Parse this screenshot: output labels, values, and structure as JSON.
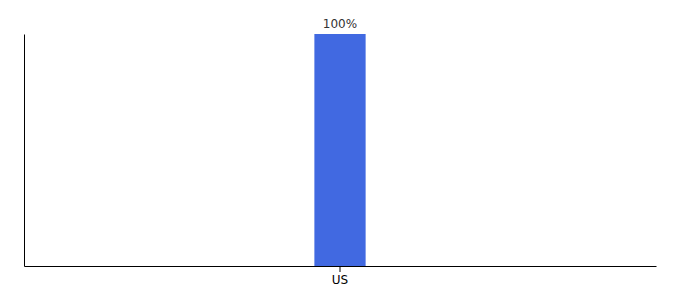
{
  "chart_data": {
    "type": "bar",
    "categories": [
      "US"
    ],
    "values": [
      100
    ],
    "value_labels": [
      "100%"
    ],
    "color": "#4169e1",
    "ylim": [
      0,
      100
    ],
    "data_labels": true,
    "tick_labels": "x"
  }
}
